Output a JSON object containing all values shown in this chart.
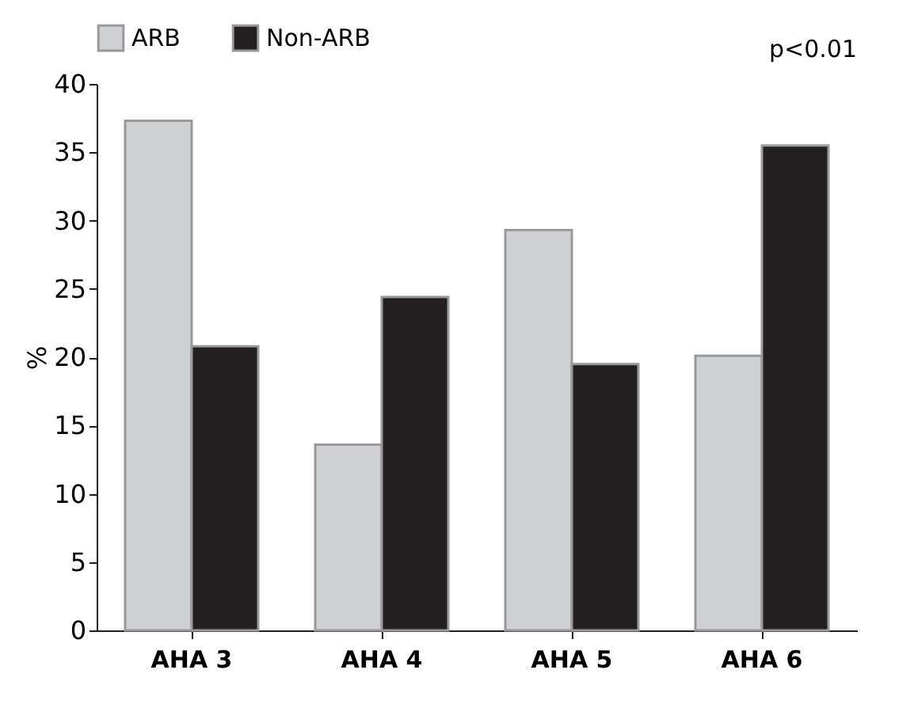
{
  "chart_data": {
    "type": "bar",
    "ylabel": "%",
    "categories": [
      "AHA 3",
      "AHA 4",
      "AHA 5",
      "AHA 6"
    ],
    "series": [
      {
        "name": "ARB",
        "color": "#cfd0d3",
        "values": [
          37.3,
          13.6,
          29.3,
          20.1
        ]
      },
      {
        "name": "Non-ARB",
        "color": "#231f20",
        "values": [
          20.8,
          24.4,
          19.5,
          35.5
        ]
      }
    ],
    "ylim": [
      0,
      40
    ],
    "yticks": [
      0,
      5,
      10,
      15,
      20,
      25,
      30,
      35,
      40
    ],
    "grid": false,
    "legend": "top",
    "annotations": [
      "p<0.01"
    ]
  }
}
